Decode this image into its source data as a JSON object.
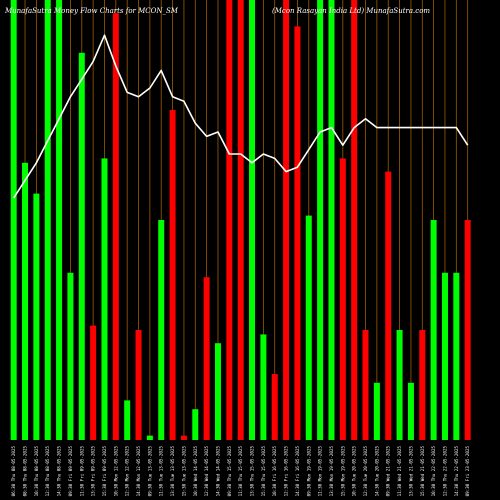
{
  "chart_data": {
    "type": "bar",
    "title_left": "MunafaSutra  Money Flow  Charts for MCON_SM",
    "title_right": "(Mcon  Rasayan  India  Ltd) MunafaSutra.com",
    "colors": {
      "background": "#000000",
      "up": "#00ff00",
      "down": "#ff0000",
      "grid": "#a05a00",
      "line": "#ffffff"
    },
    "ylim": [
      0,
      100
    ],
    "line_ylim": [
      0,
      100
    ],
    "categories": [
      "06:30 Thu 08-05-2025",
      "08:30 Thu 08-05-2025",
      "10:30 Thu 08-05-2025",
      "12:30 Thu 08-05-2025",
      "14:30 Thu 08-05-2025",
      "09:30 Fri 09-05-2025",
      "11:30 Fri 09-05-2025",
      "13:30 Fri 09-05-2025",
      "15:30 Fri 09-05-2025",
      "10:30 Mon 12-05-2025",
      "12:30 Mon 12-05-2025",
      "14:30 Mon 12-05-2025",
      "09:30 Tue 13-05-2025",
      "11:30 Tue 13-05-2025",
      "13:30 Tue 13-05-2025",
      "15:30 Tue 13-05-2025",
      "10:30 Wed 14-05-2025",
      "12:30 Wed 14-05-2025",
      "14:30 Wed 14-05-2025",
      "09:30 Thu 15-05-2025",
      "11:30 Thu 15-05-2025",
      "13:30 Thu 15-05-2025",
      "15:30 Thu 15-05-2025",
      "10:30 Fri 16-05-2025",
      "12:30 Fri 16-05-2025",
      "14:30 Fri 16-05-2025",
      "09:30 Mon 19-05-2025",
      "11:30 Mon 19-05-2025",
      "13:30 Mon 19-05-2025",
      "15:30 Mon 19-05-2025",
      "10:30 Tue 20-05-2025",
      "12:30 Tue 20-05-2025",
      "14:30 Tue 20-05-2025",
      "09:30 Wed 21-05-2025",
      "11:30 Wed 21-05-2025",
      "13:30 Wed 21-05-2025",
      "15:30 Wed 21-05-2025",
      "10:30 Thu 22-05-2025",
      "12:30 Thu 22-05-2025",
      "14:30 Thu 22-05-2025",
      "09:30 Fri 23-05-2025"
    ],
    "series": [
      {
        "values": [
          100,
          63,
          56,
          100,
          100,
          38,
          88,
          26,
          64,
          97,
          9,
          25,
          1,
          50,
          75,
          1,
          7,
          37,
          22,
          100,
          100,
          100,
          24,
          15,
          100,
          94,
          51,
          100,
          100,
          64,
          100,
          25,
          13,
          61,
          25,
          13,
          25,
          50,
          38,
          38,
          50
        ],
        "colors": [
          "up",
          "up",
          "up",
          "up",
          "up",
          "up",
          "up",
          "down",
          "up",
          "down",
          "up",
          "down",
          "up",
          "up",
          "down",
          "down",
          "up",
          "down",
          "up",
          "down",
          "down",
          "up",
          "up",
          "down",
          "down",
          "down",
          "up",
          "up",
          "up",
          "down",
          "down",
          "down",
          "up",
          "down",
          "up",
          "up",
          "down",
          "up",
          "up",
          "up",
          "down"
        ]
      },
      {
        "values": [
          55,
          59,
          63,
          68,
          73,
          78,
          82,
          86,
          92,
          85,
          79,
          78,
          80,
          84,
          78,
          77,
          72,
          69,
          70,
          65,
          65,
          63,
          65,
          64,
          61,
          62,
          66,
          70,
          71,
          67,
          71,
          73,
          71,
          71,
          71,
          71,
          71,
          71,
          71,
          71,
          67
        ]
      }
    ]
  }
}
